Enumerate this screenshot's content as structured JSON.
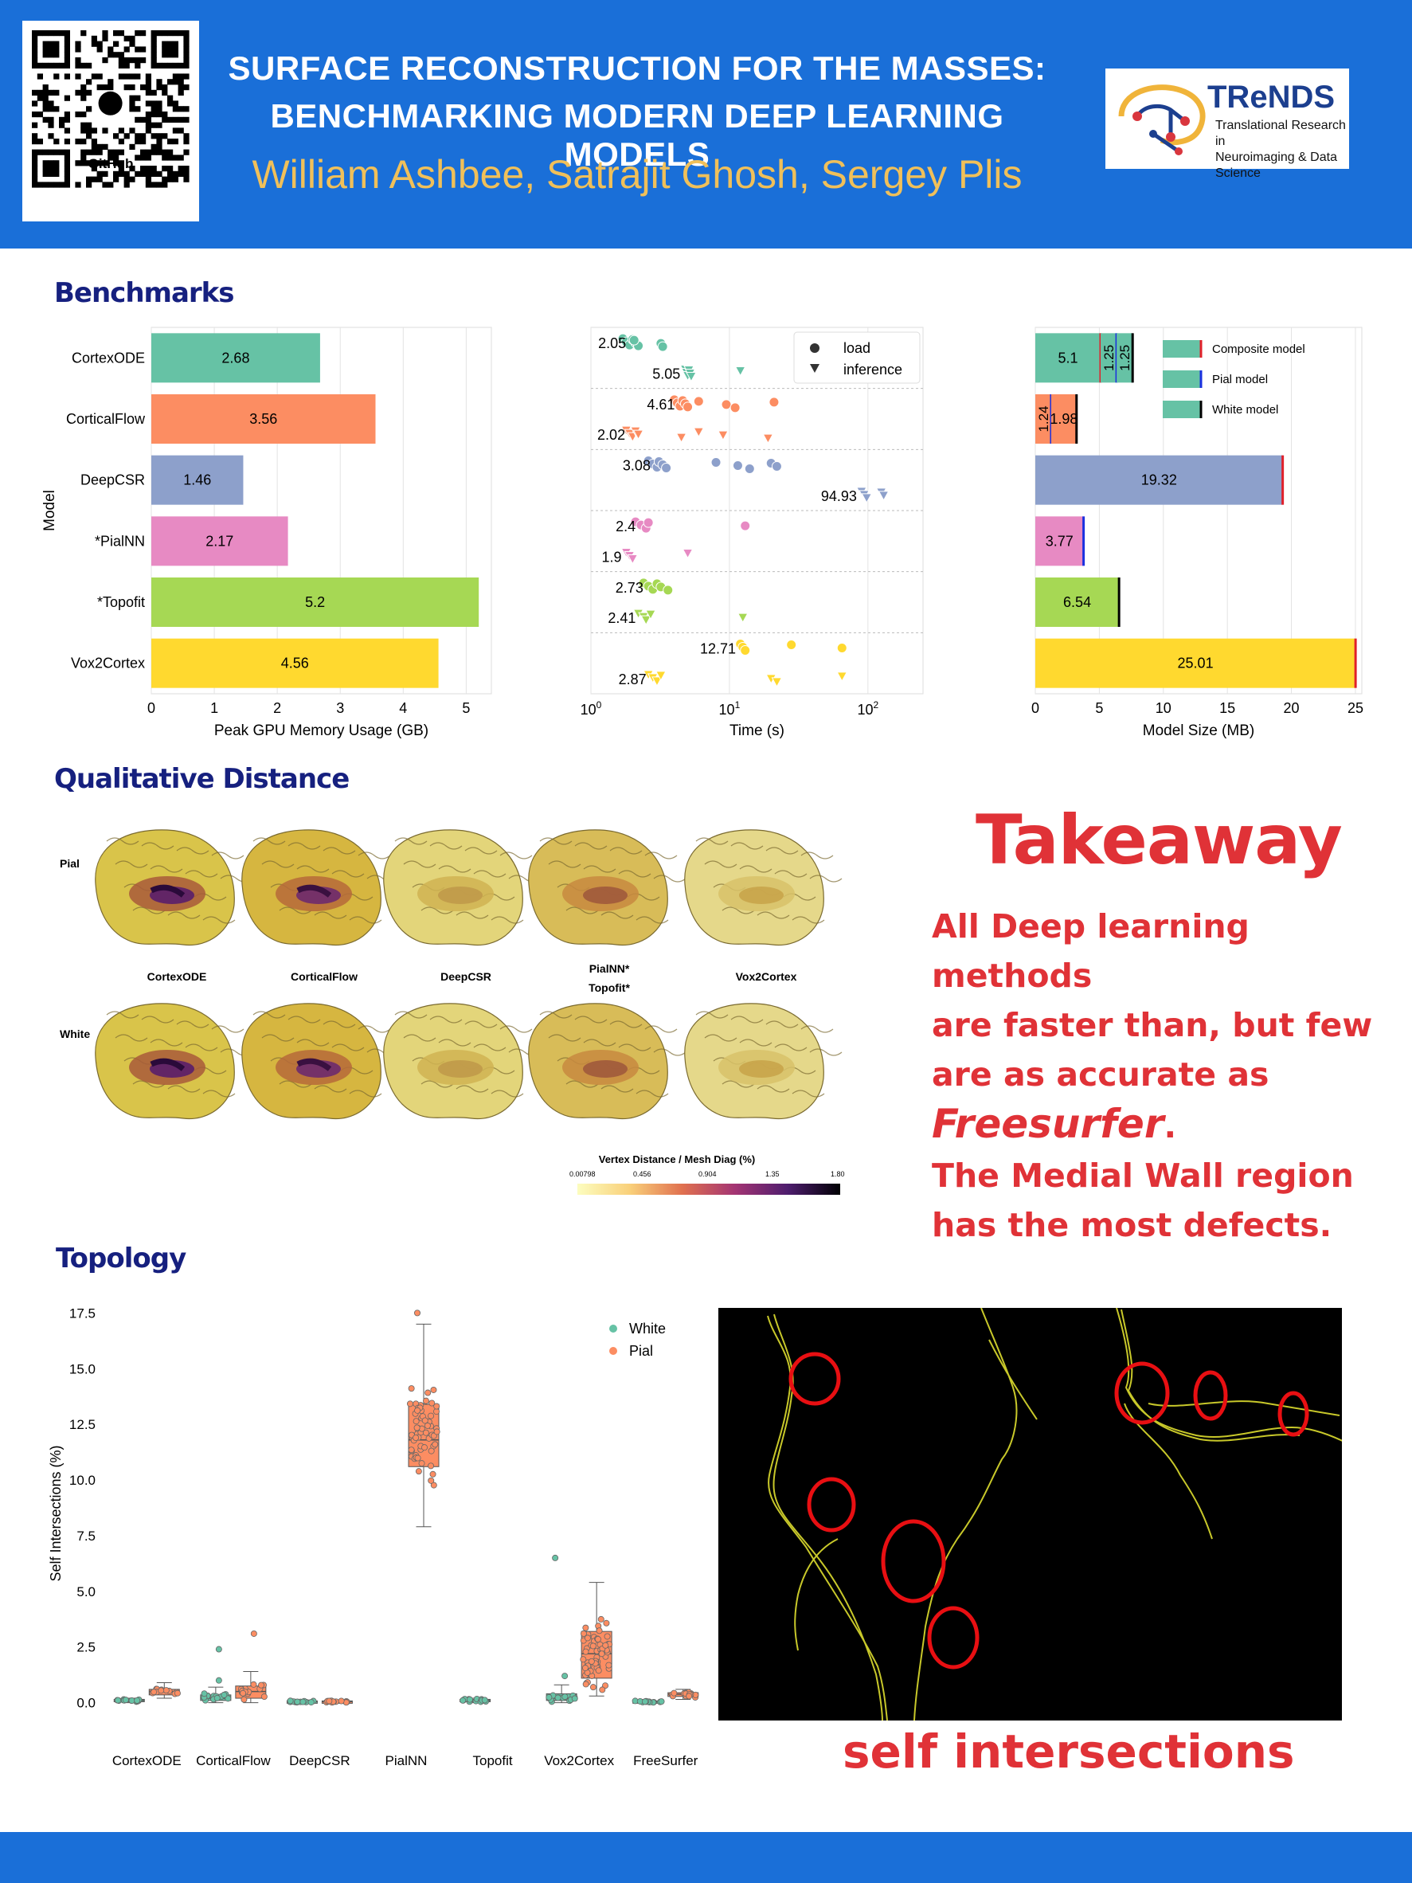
{
  "header": {
    "title_line1": "SURFACE RECONSTRUCTION FOR THE MASSES:",
    "title_line2": "BENCHMARKING MODERN DEEP LEARNING MODELS",
    "authors": "William Ashbee, Satrajit Ghosh, Sergey Plis",
    "qr_label": "GitHub",
    "logo_title": "TReNDS",
    "logo_sub1": "Translational Research in",
    "logo_sub2": "Neuroimaging & Data Science"
  },
  "sections": {
    "benchmarks": "Benchmarks",
    "qualitative": "Qualitative Distance",
    "topology": "Topology"
  },
  "takeaway": {
    "title": "Takeaway",
    "line1": "All Deep learning methods",
    "line2": "are faster than, but few",
    "line3": "are as accurate as",
    "line4": "Freesurfer",
    "line4_suffix": ".",
    "line5": "The Medial Wall region",
    "line6": "has the most defects."
  },
  "qualitative": {
    "row_pial": "Pial",
    "row_white": "White",
    "models": [
      "CortexODE",
      "CorticalFlow",
      "DeepCSR",
      "PialNN*",
      "Vox2Cortex"
    ],
    "extra_label": "Topofit*",
    "colorbar_title": "Vertex Distance / Mesh Diag (%)",
    "colorbar_ticks": [
      "0.00798",
      "0.456",
      "0.904",
      "1.35",
      "1.80"
    ]
  },
  "self_intersections_caption": "self intersections",
  "colors": {
    "header_blue": "#1a6fd8",
    "author_gold": "#f0c05a",
    "section_navy": "#16207f",
    "takeaway_red": "#e03237"
  },
  "chart_data": [
    {
      "type": "bar",
      "orientation": "horizontal",
      "categories": [
        "CortexODE",
        "CorticalFlow",
        "DeepCSR",
        "*PialNN",
        "*Topofit",
        "Vox2Cortex"
      ],
      "values": [
        2.68,
        3.56,
        1.46,
        2.17,
        5.2,
        4.56
      ],
      "labels": [
        "2.68",
        "3.56",
        "1.46",
        "2.17",
        "5.2",
        "4.56"
      ],
      "colors": [
        "#66c2a5",
        "#fc8d62",
        "#8da0cb",
        "#e78ac3",
        "#a6d854",
        "#ffd92f"
      ],
      "xlabel": "Peak GPU Memory Usage (GB)",
      "ylabel": "Model",
      "xlim": [
        0,
        5.4
      ],
      "xticks": [
        "0",
        "1",
        "2",
        "3",
        "4",
        "5"
      ]
    },
    {
      "type": "scatter",
      "xscale": "log",
      "xlabel": "Time (s)",
      "xlim": [
        1,
        250
      ],
      "xticks": [
        "10^0",
        "10^1",
        "10^2"
      ],
      "legend": [
        "load",
        "inference"
      ],
      "legend_position": "top-right",
      "rows": [
        {
          "label": "2.05",
          "kind": "load",
          "color": "#66c2a5",
          "points": [
            1.7,
            1.8,
            1.9,
            2.0,
            2.1,
            2.2,
            2.05,
            3.2,
            3.3
          ]
        },
        {
          "label": "5.05",
          "kind": "inference",
          "color": "#66c2a5",
          "points": [
            4.8,
            4.9,
            5.0,
            5.1,
            5.2,
            5.3,
            12.0
          ]
        },
        {
          "label": "4.61",
          "kind": "load",
          "color": "#fc8d62",
          "points": [
            4.0,
            4.2,
            4.4,
            4.6,
            4.8,
            5.0,
            6.0,
            9.5,
            11.0,
            21.0
          ]
        },
        {
          "label": "2.02",
          "kind": "inference",
          "color": "#fc8d62",
          "points": [
            1.8,
            1.9,
            2.0,
            2.1,
            2.2,
            4.5,
            6.0,
            9.0,
            19.0
          ]
        },
        {
          "label": "3.08",
          "kind": "load",
          "color": "#8da0cb",
          "points": [
            2.6,
            2.8,
            3.0,
            3.1,
            3.3,
            3.5,
            8.0,
            11.5,
            14.0,
            20.0,
            22.0
          ]
        },
        {
          "label": "94.93",
          "kind": "inference",
          "color": "#8da0cb",
          "points": [
            90.0,
            94.0,
            98.0,
            125.0,
            130.0
          ]
        },
        {
          "label": "2.4",
          "kind": "load",
          "color": "#e78ac3",
          "points": [
            2.1,
            2.3,
            2.5,
            2.6,
            13.0
          ]
        },
        {
          "label": "1.9",
          "kind": "inference",
          "color": "#e78ac3",
          "points": [
            1.8,
            1.9,
            2.0,
            5.0
          ]
        },
        {
          "label": "2.73",
          "kind": "load",
          "color": "#a6d854",
          "points": [
            2.4,
            2.6,
            2.8,
            3.0,
            3.2,
            3.6
          ]
        },
        {
          "label": "2.41",
          "kind": "inference",
          "color": "#a6d854",
          "points": [
            2.2,
            2.4,
            2.5,
            2.7,
            12.5
          ]
        },
        {
          "label": "12.71",
          "kind": "load",
          "color": "#ffd92f",
          "points": [
            12.0,
            12.5,
            13.0,
            28.0,
            65.0
          ]
        },
        {
          "label": "2.87",
          "kind": "inference",
          "color": "#ffd92f",
          "points": [
            2.6,
            2.8,
            3.0,
            3.2,
            20.0,
            22.0,
            65.0
          ]
        }
      ]
    },
    {
      "type": "bar",
      "orientation": "horizontal",
      "stacked": true,
      "xlabel": "Model Size (MB)",
      "xlim": [
        0,
        25.5
      ],
      "xticks": [
        "0",
        "5",
        "10",
        "15",
        "20",
        "25"
      ],
      "legend": [
        "Composite model",
        "Pial model",
        "White model"
      ],
      "legend_position": "top-right",
      "bars": [
        {
          "color": "#66c2a5",
          "segments": [
            5.1,
            1.25,
            1.25
          ],
          "labels": [
            "5.1",
            "1.25",
            "1.25"
          ],
          "marks": [
            "composite",
            "pial",
            "white"
          ]
        },
        {
          "color": "#fc8d62",
          "segments": [
            1.24,
            1.98
          ],
          "labels": [
            "1.24",
            "1.98"
          ],
          "marks": [
            "pial",
            "white"
          ]
        },
        {
          "color": "#8da0cb",
          "segments": [
            19.32
          ],
          "labels": [
            "19.32"
          ],
          "marks": [
            "composite"
          ]
        },
        {
          "color": "#e78ac3",
          "segments": [
            3.77
          ],
          "labels": [
            "3.77"
          ],
          "marks": [
            "pial"
          ]
        },
        {
          "color": "#a6d854",
          "segments": [
            6.54
          ],
          "labels": [
            "6.54"
          ],
          "marks": [
            "white"
          ]
        },
        {
          "color": "#ffd92f",
          "segments": [
            25.01
          ],
          "labels": [
            "25.01"
          ],
          "marks": [
            "composite"
          ]
        }
      ]
    },
    {
      "type": "box",
      "ylabel": "Self Intersections (%)",
      "ylim": [
        -0.8,
        17.8
      ],
      "yticks": [
        "0.0",
        "2.5",
        "5.0",
        "7.5",
        "10.0",
        "12.5",
        "15.0",
        "17.5"
      ],
      "categories": [
        "CortexODE",
        "CorticalFlow",
        "DeepCSR",
        "PialNN",
        "Topofit",
        "Vox2Cortex",
        "FreeSurfer"
      ],
      "legend": [
        "White",
        "Pial"
      ],
      "legend_position": "top-right",
      "series": [
        {
          "name": "White",
          "color": "#66c2a5",
          "boxes": [
            {
              "q1": 0.05,
              "med": 0.1,
              "q3": 0.15,
              "min": 0.0,
              "max": 0.2,
              "outliers": []
            },
            {
              "q1": 0.1,
              "med": 0.2,
              "q3": 0.35,
              "min": 0.0,
              "max": 0.7,
              "outliers": [
                1.0,
                2.4
              ]
            },
            {
              "q1": 0.02,
              "med": 0.05,
              "q3": 0.08,
              "min": 0.0,
              "max": 0.12,
              "outliers": []
            },
            null,
            {
              "q1": 0.05,
              "med": 0.1,
              "q3": 0.15,
              "min": 0.0,
              "max": 0.2,
              "outliers": []
            },
            {
              "q1": 0.1,
              "med": 0.2,
              "q3": 0.4,
              "min": 0.0,
              "max": 0.8,
              "outliers": [
                1.2,
                6.5
              ]
            },
            {
              "q1": 0.02,
              "med": 0.05,
              "q3": 0.08,
              "min": 0.0,
              "max": 0.12,
              "outliers": []
            }
          ]
        },
        {
          "name": "Pial",
          "color": "#fc8d62",
          "boxes": [
            {
              "q1": 0.35,
              "med": 0.5,
              "q3": 0.6,
              "min": 0.2,
              "max": 0.9,
              "outliers": []
            },
            {
              "q1": 0.2,
              "med": 0.5,
              "q3": 0.75,
              "min": 0.0,
              "max": 1.4,
              "outliers": [
                3.1
              ]
            },
            {
              "q1": 0.02,
              "med": 0.05,
              "q3": 0.08,
              "min": 0.0,
              "max": 0.12,
              "outliers": []
            },
            {
              "q1": 10.6,
              "med": 11.8,
              "q3": 13.4,
              "min": 7.9,
              "max": 17.0,
              "outliers": [
                17.5
              ]
            },
            null,
            {
              "q1": 1.1,
              "med": 2.2,
              "q3": 3.2,
              "min": 0.3,
              "max": 5.4,
              "outliers": []
            },
            {
              "q1": 0.28,
              "med": 0.38,
              "q3": 0.45,
              "min": 0.15,
              "max": 0.6,
              "outliers": []
            }
          ]
        }
      ]
    }
  ]
}
